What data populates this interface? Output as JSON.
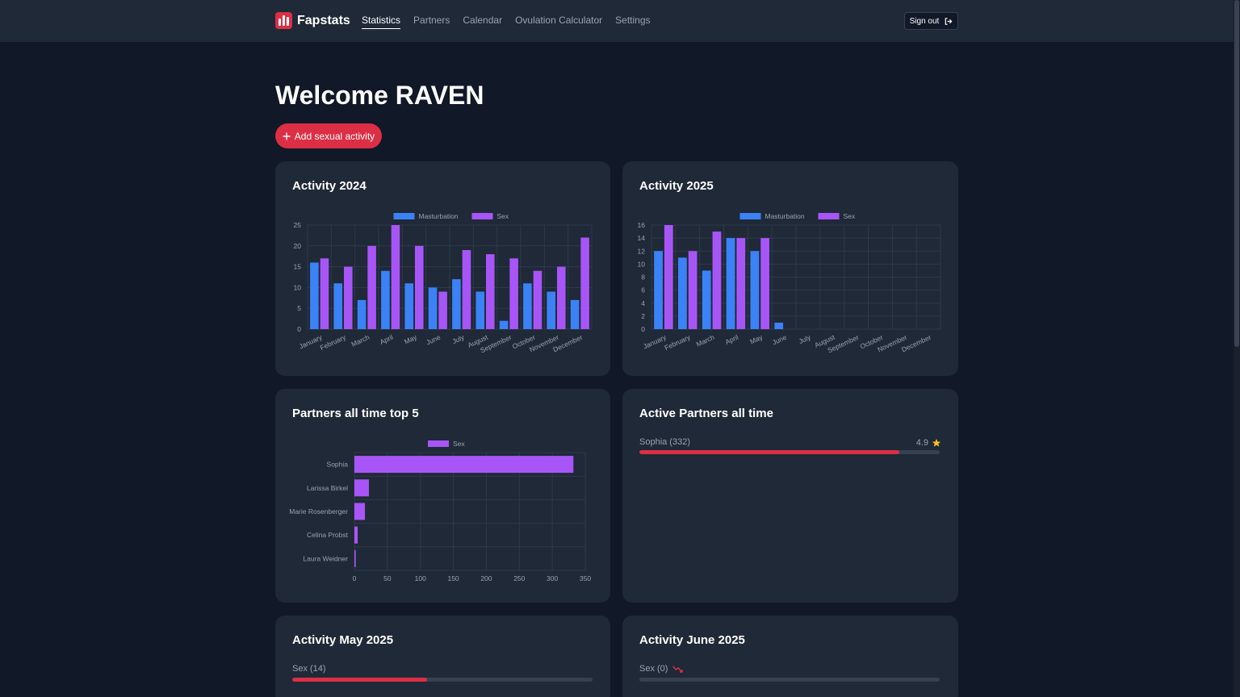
{
  "nav": {
    "brand": "Fapstats",
    "links": [
      "Statistics",
      "Partners",
      "Calendar",
      "Ovulation Calculator",
      "Settings"
    ],
    "signout": "Sign out"
  },
  "welcome": "Welcome RAVEN",
  "add_button": "Add sexual activity",
  "colors": {
    "masturbation": "#3b82f6",
    "sex": "#a855f7",
    "accent": "#dc2f45",
    "star": "#fbbf24"
  },
  "cards": {
    "activity_2024": {
      "title": "Activity 2024"
    },
    "activity_2025": {
      "title": "Activity 2025"
    },
    "partners_top5": {
      "title": "Partners all time top 5"
    },
    "active_partners": {
      "title": "Active Partners all time",
      "items": [
        {
          "label": "Sophia (332)",
          "rating": "4.9",
          "progress": 0.865
        }
      ]
    },
    "may_2025": {
      "title": "Activity May 2025",
      "label": "Sex (14)",
      "progress": 0.45
    },
    "june_2025": {
      "title": "Activity June 2025",
      "label": "Sex (0)",
      "progress": 0
    }
  },
  "chart_data": [
    {
      "type": "bar",
      "title": "Activity 2024",
      "categories": [
        "January",
        "February",
        "March",
        "April",
        "May",
        "June",
        "July",
        "August",
        "September",
        "October",
        "November",
        "December"
      ],
      "series": [
        {
          "name": "Masturbation",
          "values": [
            16,
            11,
            7,
            14,
            11,
            10,
            12,
            9,
            2,
            11,
            9,
            7
          ]
        },
        {
          "name": "Sex",
          "values": [
            17,
            15,
            20,
            25,
            20,
            9,
            19,
            18,
            17,
            14,
            15,
            22
          ]
        }
      ],
      "ylim": [
        0,
        25
      ],
      "yticks": [
        0,
        5,
        10,
        15,
        20,
        25
      ],
      "legend": "top"
    },
    {
      "type": "bar",
      "title": "Activity 2025",
      "categories": [
        "January",
        "February",
        "March",
        "April",
        "May",
        "June",
        "July",
        "August",
        "September",
        "October",
        "November",
        "December"
      ],
      "series": [
        {
          "name": "Masturbation",
          "values": [
            12,
            11,
            9,
            14,
            12,
            1,
            0,
            0,
            0,
            0,
            0,
            0
          ]
        },
        {
          "name": "Sex",
          "values": [
            16,
            12,
            15,
            14,
            14,
            0,
            0,
            0,
            0,
            0,
            0,
            0
          ]
        }
      ],
      "ylim": [
        0,
        16
      ],
      "yticks": [
        0,
        2,
        4,
        6,
        8,
        10,
        12,
        14,
        16
      ],
      "legend": "top"
    },
    {
      "type": "bar",
      "orientation": "horizontal",
      "title": "Partners all time top 5",
      "categories": [
        "Sophia",
        "Larissa Birkel",
        "Marie Rosenberger",
        "Celina Probst",
        "Laura Weidner"
      ],
      "series": [
        {
          "name": "Sex",
          "values": [
            332,
            22,
            16,
            5,
            2
          ]
        }
      ],
      "xlim": [
        0,
        350
      ],
      "xticks": [
        0,
        50,
        100,
        150,
        200,
        250,
        300,
        350
      ],
      "legend": "top"
    }
  ]
}
